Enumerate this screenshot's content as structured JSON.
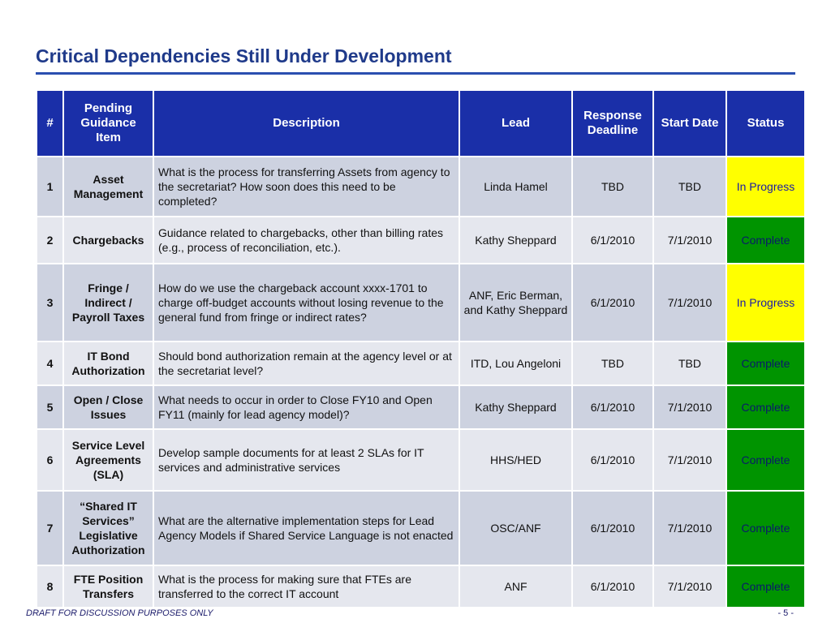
{
  "title": "Critical Dependencies Still Under Development",
  "headers": {
    "num": "#",
    "item": "Pending Guidance Item",
    "description": "Description",
    "lead": "Lead",
    "response": "Response Deadline",
    "start": "Start Date",
    "status": "Status"
  },
  "rows": [
    {
      "num": "1",
      "item": "Asset Management",
      "description": "What is the process for transferring Assets from agency to the secretariat?  How soon does this need to be completed?",
      "lead": "Linda Hamel",
      "response": "TBD",
      "start": "TBD",
      "status": "In Progress"
    },
    {
      "num": "2",
      "item": "Chargebacks",
      "description": "Guidance related to chargebacks, other than billing rates (e.g., process of reconciliation, etc.).",
      "lead": "Kathy Sheppard",
      "response": "6/1/2010",
      "start": "7/1/2010",
      "status": "Complete"
    },
    {
      "num": "3",
      "item": "Fringe / Indirect / Payroll Taxes",
      "description": "How do we use the chargeback account xxxx-1701 to charge off-budget accounts without losing revenue to the general fund from fringe or indirect rates?",
      "lead": "ANF, Eric Berman, and Kathy Sheppard",
      "response": "6/1/2010",
      "start": "7/1/2010",
      "status": "In Progress"
    },
    {
      "num": "4",
      "item": "IT Bond Authorization",
      "description": "Should bond authorization remain at the agency level or at the secretariat level?",
      "lead": "ITD, Lou Angeloni",
      "response": "TBD",
      "start": "TBD",
      "status": "Complete"
    },
    {
      "num": "5",
      "item": "Open / Close Issues",
      "description": "What needs to occur in order to Close FY10 and Open FY11 (mainly for lead agency model)?",
      "lead": "Kathy Sheppard",
      "response": "6/1/2010",
      "start": "7/1/2010",
      "status": "Complete"
    },
    {
      "num": "6",
      "item": "Service Level Agreements (SLA)",
      "description": "Develop sample documents for at least 2 SLAs for IT services and administrative services",
      "lead": "HHS/HED",
      "response": "6/1/2010",
      "start": "7/1/2010",
      "status": "Complete"
    },
    {
      "num": "7",
      "item": "“Shared IT Services” Legislative Authorization",
      "description": "What are the alternative implementation steps for Lead Agency Models if Shared Service Language is not enacted",
      "lead": "OSC/ANF",
      "response": "6/1/2010",
      "start": "7/1/2010",
      "status": "Complete"
    },
    {
      "num": "8",
      "item": "FTE Position Transfers",
      "description": "What is the process for making sure that FTEs are transferred to the correct IT account",
      "lead": "ANF",
      "response": "6/1/2010",
      "start": "7/1/2010",
      "status": "Complete"
    }
  ],
  "status_colors": {
    "In Progress": "#ffff00",
    "Complete": "#009400"
  },
  "footer": {
    "disclaimer": "DRAFT FOR DISCUSSION PURPOSES ONLY",
    "page": "- 5 -"
  }
}
